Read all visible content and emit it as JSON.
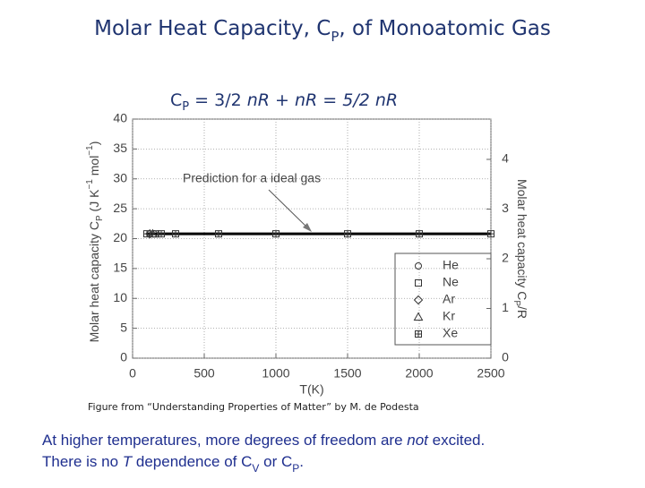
{
  "slide": {
    "title": [
      "Molar Heat Capacity, C",
      "P",
      ", of Monoatomic  Gas"
    ],
    "formula": [
      "C",
      "P",
      " = 3/2 ",
      "n",
      "R + ",
      "n",
      "R = 5/2 ",
      "n",
      "R"
    ],
    "caption": "Figure from “Understanding Properties of Matter” by  M. de Podesta",
    "footer": [
      [
        "At higher temperatures, more degrees of freedom are ",
        "not",
        " excited."
      ],
      [
        "There is no ",
        "T",
        " dependence of C",
        "V",
        " or C",
        "P",
        "."
      ]
    ]
  },
  "chart_data": {
    "type": "scatter",
    "xlabel": "T(K)",
    "ylabel": [
      "Molar heat capacity C",
      "P",
      " (J K",
      "−1",
      " mol",
      "−1",
      ")"
    ],
    "y2label": [
      "Molar heat capacity C",
      "P",
      "/R"
    ],
    "xlim": [
      0,
      2500
    ],
    "xticks": [
      0,
      500,
      1000,
      1500,
      2000,
      2500
    ],
    "ylim": [
      0,
      40
    ],
    "yticks": [
      0,
      5,
      10,
      15,
      20,
      25,
      30,
      35,
      40
    ],
    "y2lim": [
      0,
      4.811
    ],
    "y2ticks": [
      0,
      1,
      2,
      3,
      4
    ],
    "grid": true,
    "prediction": {
      "label": "Prediction for a ideal gas",
      "color": "#000000",
      "x": [
        100,
        2500
      ],
      "values": [
        20.8,
        20.8
      ]
    },
    "series": [
      {
        "name": "He",
        "marker": "circle",
        "color": "#333333",
        "x": [
          150
        ],
        "values": [
          20.8
        ]
      },
      {
        "name": "Ne",
        "marker": "square",
        "color": "#333333",
        "x": [
          160
        ],
        "values": [
          20.8
        ]
      },
      {
        "name": "Ar",
        "marker": "diamond",
        "color": "#333333",
        "x": [
          120
        ],
        "values": [
          20.8
        ]
      },
      {
        "name": "Kr",
        "marker": "triangle",
        "color": "#333333",
        "x": [
          140
        ],
        "values": [
          20.8
        ]
      },
      {
        "name": "Xe",
        "marker": "crossbox",
        "color": "#333333",
        "x": [
          100,
          200,
          300,
          600,
          1000,
          1500,
          2000,
          2500
        ],
        "values": [
          20.8,
          20.8,
          20.8,
          20.8,
          20.8,
          20.8,
          20.8,
          20.8
        ]
      }
    ]
  }
}
